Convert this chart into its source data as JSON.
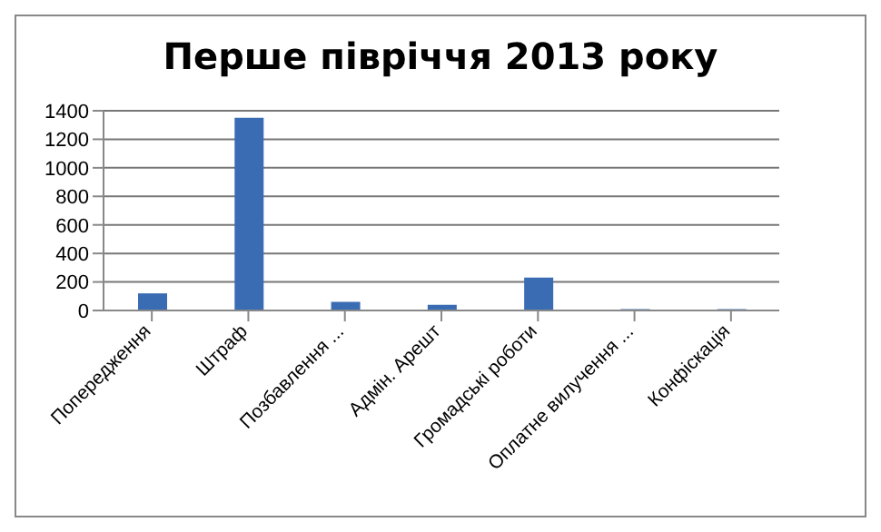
{
  "chart_data": {
    "type": "bar",
    "title": "Перше півріччя 2013 року",
    "categories": [
      "Попередження",
      "Штраф",
      "Позбавлення ...",
      "Адмін. Арешт",
      "Громадські роботи",
      "Оплатне вилучення ...",
      "Конфіскація"
    ],
    "values": [
      120,
      1350,
      60,
      40,
      230,
      10,
      10
    ],
    "color": "#3a6cb4",
    "ylim": [
      0,
      1400
    ],
    "yticks": [
      0,
      200,
      400,
      600,
      800,
      1000,
      1200,
      1400
    ],
    "grid": "y"
  }
}
